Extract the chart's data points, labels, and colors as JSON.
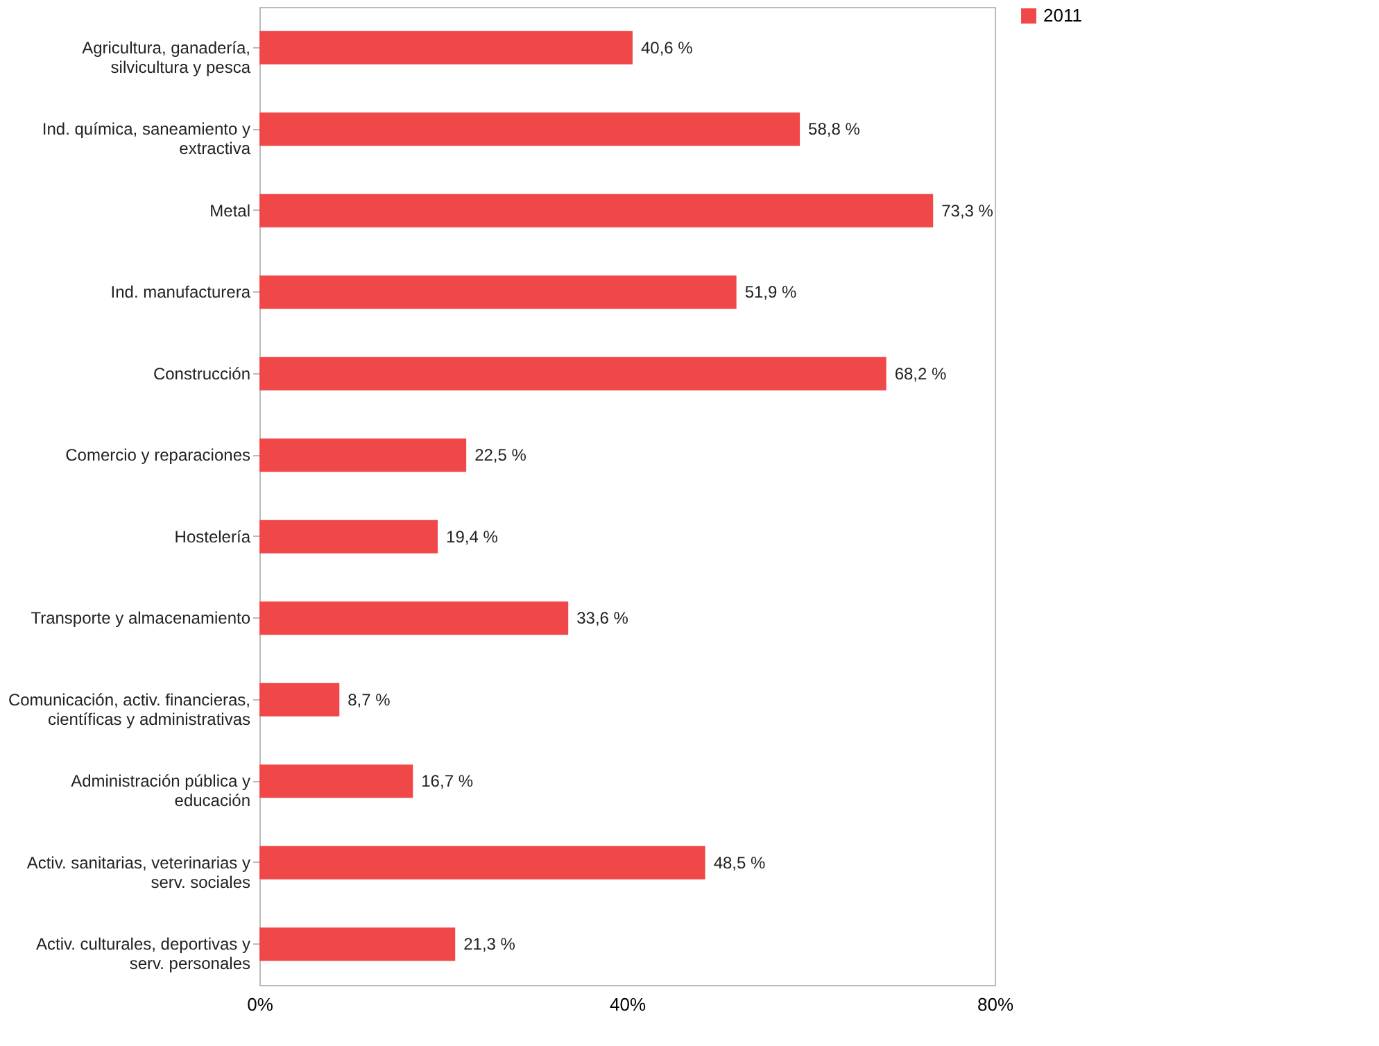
{
  "chart_data": {
    "type": "bar",
    "orientation": "horizontal",
    "categories": [
      "Agricultura, ganadería, silvicultura y pesca",
      "Ind. química, saneamiento y extractiva",
      "Metal",
      "Ind. manufacturera",
      "Construcción",
      "Comercio y reparaciones",
      "Hostelería",
      "Transporte y almacenamiento",
      "Comunicación, activ. financieras, científicas y administrativas",
      "Administración pública y educación",
      "Activ. sanitarias, veterinarias y serv. sociales",
      "Activ. culturales, deportivas y serv. personales"
    ],
    "series": [
      {
        "name": "2011",
        "color": "#f04848",
        "values": [
          40.6,
          58.8,
          73.3,
          51.9,
          68.2,
          22.5,
          19.4,
          33.6,
          8.7,
          16.7,
          48.5,
          21.3
        ],
        "value_labels": [
          "40,6 %",
          "58,8 %",
          "73,3 %",
          "51,9 %",
          "68,2 %",
          "22,5 %",
          "19,4 %",
          "33,6 %",
          "8,7 %",
          "16,7 %",
          "48,5 %",
          "21,3 %"
        ]
      }
    ],
    "xlim": [
      0,
      80
    ],
    "xticks": [
      {
        "value": 0,
        "label": "0%"
      },
      {
        "value": 40,
        "label": "40%"
      },
      {
        "value": 80,
        "label": "80%"
      }
    ],
    "grid": false,
    "legend": "right"
  }
}
